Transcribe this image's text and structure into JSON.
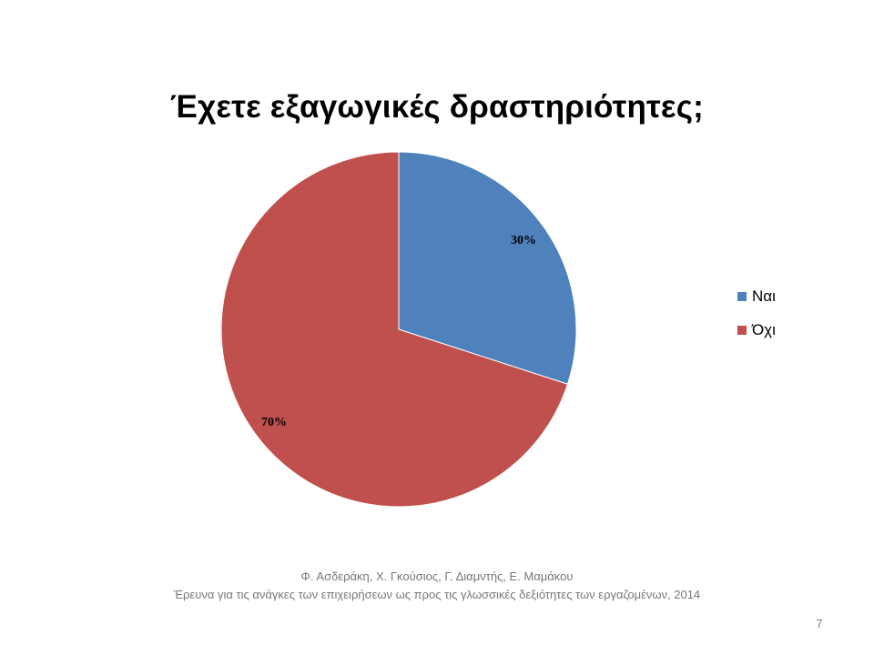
{
  "colors": {
    "nai": "#4F81BD",
    "oxi": "#C0504D"
  },
  "chart_data": {
    "type": "pie",
    "title": "Έχετε εξαγωγικές δραστηριότητες;",
    "categories": [
      "Ναι",
      "Όχι"
    ],
    "values": [
      30,
      70
    ],
    "data_labels": [
      "30%",
      "70%"
    ],
    "legend_position": "right",
    "start_angle_deg": 0,
    "direction": "clockwise"
  },
  "footer": {
    "authors": "Φ. Ασδεράκη, Χ. Γκούσιος, Γ. Διαμντής, Ε. Μαμάκου",
    "study": "Έρευνα για τις ανάγκες των επιχειρήσεων ως προς τις γλωσσικές δεξιότητες των εργαζομένων, 2014"
  },
  "page_number": "7"
}
